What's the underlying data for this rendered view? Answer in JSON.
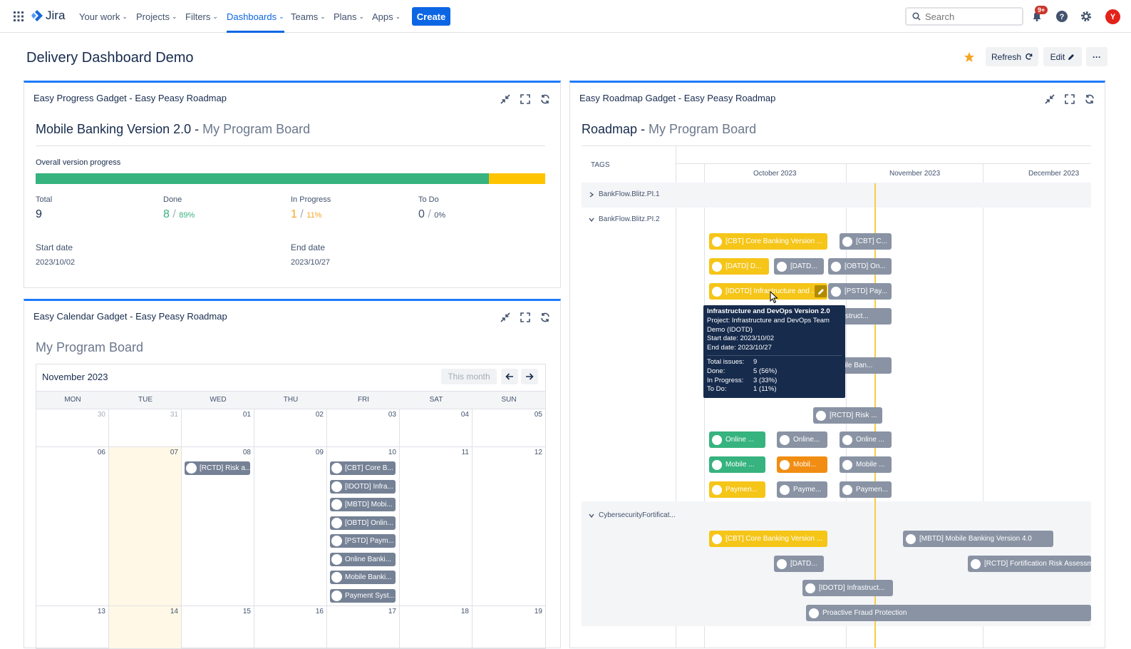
{
  "nav": {
    "product": "Jira",
    "items": [
      {
        "label": "Your work",
        "chevron": "⌄"
      },
      {
        "label": "Projects",
        "chevron": "⌄"
      },
      {
        "label": "Filters",
        "chevron": "⌄"
      },
      {
        "label": "Dashboards",
        "chevron": "⌄"
      },
      {
        "label": "Teams",
        "chevron": "⌄"
      },
      {
        "label": "Plans",
        "chevron": "⌄"
      },
      {
        "label": "Apps",
        "chevron": "⌄"
      }
    ],
    "create_label": "Create",
    "search_placeholder": "Search",
    "notifications_badge": "9+",
    "avatar_initial": "Y",
    "accent": "#0c66e4"
  },
  "page": {
    "title": "Delivery Dashboard Demo",
    "refresh_label": "Refresh",
    "edit_label": "Edit",
    "more_label": "···"
  },
  "progress_gadget": {
    "header": "Easy Progress Gadget - Easy Peasy Roadmap",
    "title": "Mobile Banking Version 2.0",
    "separator": " - ",
    "board": "My Program Board",
    "overall_label": "Overall version progress",
    "done_fraction": 0.89,
    "stats": {
      "total_label": "Total",
      "total_value": "9",
      "done_label": "Done",
      "done_value": "8",
      "done_pct": "89%",
      "inprogress_label": "In Progress",
      "inprogress_value": "1",
      "inprogress_pct": "11%",
      "todo_label": "To Do",
      "todo_value": "0",
      "todo_pct": "0%",
      "slash": "/"
    },
    "start_label": "Start date",
    "start_value": "2023/10/02",
    "end_label": "End date",
    "end_value": "2023/10/27",
    "colors": {
      "done": "#36b37e",
      "inprogress": "#ffc400",
      "todo": "#dfe1e6"
    }
  },
  "calendar_gadget": {
    "header": "Easy Calendar Gadget - Easy Peasy Roadmap",
    "board": "My Program Board",
    "month": "November 2023",
    "this_month_label": "This month",
    "weekdays": [
      "MON",
      "TUE",
      "WED",
      "THU",
      "FRI",
      "SAT",
      "SUN"
    ],
    "weeks": [
      [
        "30",
        "31",
        "01",
        "02",
        "03",
        "04",
        "05"
      ],
      [
        "06",
        "07",
        "08",
        "09",
        "10",
        "11",
        "12"
      ],
      [
        "13",
        "14",
        "15",
        "16",
        "17",
        "18",
        "19"
      ]
    ],
    "wed_event": "[RCTD] Risk a...",
    "fri_events": [
      "[CBT] Core B...",
      "[IDOTD] Infra...",
      "[MBTD] Mobi...",
      "[OBTD] Onlin...",
      "[PSTD] Paym...",
      "Online Banki...",
      "Mobile Banki...",
      "Payment Syst..."
    ]
  },
  "roadmap_gadget": {
    "header": "Easy Roadmap Gadget - Easy Peasy Roadmap",
    "title": "Roadmap",
    "separator": " - ",
    "board": "My Program Board",
    "tags_label": "TAGS",
    "months": [
      "October 2023",
      "November 2023",
      "December 2023"
    ],
    "groups": [
      {
        "label": "BankFlow.Blitz.PI.1",
        "expanded": false
      },
      {
        "label": "BankFlow.Blitz.PI.2",
        "expanded": true
      },
      {
        "label": "CybersecurityFortificat...",
        "expanded": true
      }
    ],
    "bars": [
      "[CBT] Core Banking Version ...",
      "[CBT] C...",
      "[DATD] D...",
      "[DATD...",
      "[OBTD] On...",
      "[IDOTD] Infrastructure and ...",
      "[PSTD] Pay...",
      "Infrastruct...",
      "Mobile Ban...",
      "[RCTD] Risk ...",
      "Online ...",
      "Online...",
      "Online ...",
      "Mobile ...",
      "Mobil...",
      "Mobile ...",
      "Paymen...",
      "Payme...",
      "Paymen...",
      "[CBT] Core Banking Version ...",
      "[MBTD] Mobile Banking Version 4.0",
      "[DATD...",
      "[RCTD] Fortification Risk Assessment",
      "[IDOTD] Infrastruct...",
      "Proactive Fraud Protection"
    ],
    "tooltip": {
      "title": "Infrastructure and DevOps Version 2.0",
      "project": "Project: Infrastructure and DevOps Team Demo (IDOTD)",
      "start": "Start date: 2023/10/02",
      "end": "End date: 2023/10/27",
      "total_label": "Total issues:",
      "total_value": "9",
      "done_label": "Done:",
      "done_value": "5 (56%)",
      "inprogress_label": "In Progress:",
      "inprogress_value": "3 (33%)",
      "todo_label": "To Do:",
      "todo_value": "1 (11%)"
    },
    "colors": {
      "yellow": "#f5c518",
      "gray": "#8993a4",
      "green": "#36b37e",
      "orange": "#f18d13",
      "today_line": "#f5cd47"
    }
  }
}
